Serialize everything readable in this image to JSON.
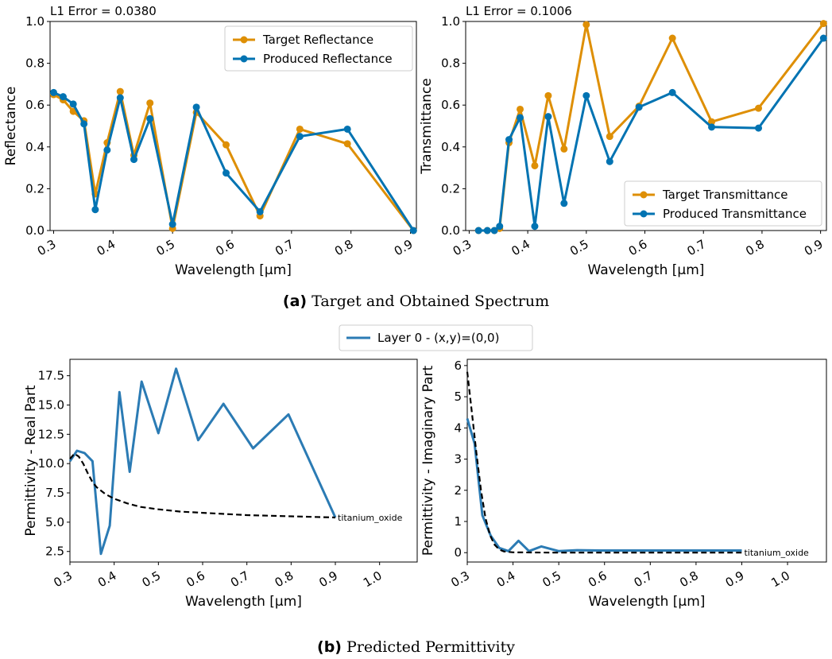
{
  "captions": {
    "a_tag": "(a)",
    "a_text": "Target and Obtained Spectrum",
    "b_tag": "(b)",
    "b_text": "Predicted Permittivity"
  },
  "shared_legend": {
    "label": "Layer 0 - (x,y)=(0,0)",
    "color": "#2b7bb4"
  },
  "colors": {
    "target": "#de8f05",
    "produced": "#0173b2",
    "layer": "#2b7bb4",
    "material": "#000000"
  },
  "chart_data": [
    {
      "id": "reflectance",
      "type": "line",
      "title": "L1 Error = 0.0380",
      "xlabel": "Wavelength [µm]",
      "ylabel": "Reflectance",
      "xlim": [
        0.294,
        0.91
      ],
      "ylim": [
        0,
        1
      ],
      "xticks": [
        0.3,
        0.4,
        0.5,
        0.6,
        0.7,
        0.8,
        0.9
      ],
      "xtick_labels": [
        "0.3",
        "0.4",
        "0.5",
        "0.6",
        "0.7",
        "0.8",
        "0.9"
      ],
      "yticks": [
        0,
        0.2,
        0.4,
        0.6,
        0.8,
        1.0
      ],
      "ytick_labels": [
        "0.0",
        "0.2",
        "0.4",
        "0.6",
        "0.8",
        "1.0"
      ],
      "legend_position": "top-right",
      "x": [
        0.3,
        0.316,
        0.333,
        0.351,
        0.37,
        0.39,
        0.412,
        0.435,
        0.462,
        0.5,
        0.54,
        0.59,
        0.647,
        0.714,
        0.794,
        0.905
      ],
      "series": [
        {
          "name": "Target Reflectance",
          "color": "#de8f05",
          "values": [
            0.65,
            0.625,
            0.57,
            0.525,
            0.175,
            0.42,
            0.665,
            0.36,
            0.61,
            0.01,
            0.565,
            0.41,
            0.07,
            0.485,
            0.415,
            0.0
          ]
        },
        {
          "name": "Produced Reflectance",
          "color": "#0173b2",
          "values": [
            0.66,
            0.64,
            0.605,
            0.51,
            0.1,
            0.385,
            0.635,
            0.34,
            0.535,
            0.03,
            0.59,
            0.275,
            0.09,
            0.45,
            0.485,
            0.0
          ]
        }
      ]
    },
    {
      "id": "transmittance",
      "type": "line",
      "title": "L1 Error = 0.1006",
      "xlabel": "Wavelength [µm]",
      "ylabel": "Transmittance",
      "xlim": [
        0.294,
        0.91
      ],
      "ylim": [
        0,
        1
      ],
      "xticks": [
        0.3,
        0.4,
        0.5,
        0.6,
        0.7,
        0.8,
        0.9
      ],
      "xtick_labels": [
        "0.3",
        "0.4",
        "0.5",
        "0.6",
        "0.7",
        "0.8",
        "0.9"
      ],
      "yticks": [
        0,
        0.2,
        0.4,
        0.6,
        0.8,
        1.0
      ],
      "ytick_labels": [
        "0.0",
        "0.2",
        "0.4",
        "0.6",
        "0.8",
        "1.0"
      ],
      "legend_position": "bottom-right",
      "x": [
        0.316,
        0.331,
        0.343,
        0.352,
        0.368,
        0.387,
        0.412,
        0.435,
        0.462,
        0.5,
        0.54,
        0.59,
        0.647,
        0.714,
        0.794,
        0.905
      ],
      "series": [
        {
          "name": "Target Transmittance",
          "color": "#de8f05",
          "values": [
            0.0,
            0.0,
            0.0,
            0.01,
            0.42,
            0.58,
            0.31,
            0.645,
            0.39,
            0.985,
            0.45,
            0.595,
            0.92,
            0.52,
            0.585,
            0.99
          ]
        },
        {
          "name": "Produced Transmittance",
          "color": "#0173b2",
          "values": [
            0.0,
            0.0,
            0.0,
            0.02,
            0.435,
            0.54,
            0.02,
            0.545,
            0.13,
            0.645,
            0.33,
            0.59,
            0.66,
            0.495,
            0.49,
            0.92
          ]
        }
      ]
    },
    {
      "id": "perm_real",
      "type": "line",
      "xlabel": "Wavelength [µm]",
      "ylabel": "Permittivity - Real Part",
      "xlim": [
        0.3,
        1.085
      ],
      "ylim": [
        1.6,
        18.9
      ],
      "xticks": [
        0.3,
        0.4,
        0.5,
        0.6,
        0.7,
        0.8,
        0.9,
        1.0
      ],
      "xtick_labels": [
        "0.3",
        "0.4",
        "0.5",
        "0.6",
        "0.7",
        "0.8",
        "0.9",
        "1.0"
      ],
      "yticks": [
        2.5,
        5.0,
        7.5,
        10.0,
        12.5,
        15.0,
        17.5
      ],
      "ytick_labels": [
        "2.5",
        "5.0",
        "7.5",
        "10.0",
        "12.5",
        "15.0",
        "17.5"
      ],
      "series": [
        {
          "name": "Layer 0 - (x,y)=(0,0)",
          "color": "#2b7bb4",
          "x": [
            0.3,
            0.316,
            0.333,
            0.351,
            0.37,
            0.39,
            0.412,
            0.435,
            0.462,
            0.5,
            0.54,
            0.59,
            0.647,
            0.714,
            0.794,
            0.9
          ],
          "values": [
            10.2,
            11.1,
            10.9,
            10.2,
            2.3,
            4.7,
            16.1,
            9.3,
            17.0,
            12.6,
            18.1,
            12.0,
            15.1,
            11.3,
            14.2,
            5.4
          ]
        },
        {
          "label": "titanium_oxide",
          "dashed": true,
          "color": "#000000",
          "x": [
            0.3,
            0.31,
            0.32,
            0.33,
            0.34,
            0.35,
            0.36,
            0.38,
            0.4,
            0.43,
            0.46,
            0.5,
            0.55,
            0.6,
            0.7,
            0.8,
            0.9
          ],
          "values": [
            10.4,
            10.85,
            10.6,
            10.0,
            9.2,
            8.5,
            8.0,
            7.4,
            7.0,
            6.6,
            6.3,
            6.1,
            5.9,
            5.8,
            5.6,
            5.5,
            5.4
          ]
        }
      ]
    },
    {
      "id": "perm_imag",
      "type": "line",
      "xlabel": "Wavelength [µm]",
      "ylabel": "Permittivity - Imaginary Part",
      "xlim": [
        0.3,
        1.085
      ],
      "ylim": [
        -0.3,
        6.2
      ],
      "xticks": [
        0.3,
        0.4,
        0.5,
        0.6,
        0.7,
        0.8,
        0.9,
        1.0
      ],
      "xtick_labels": [
        "0.3",
        "0.4",
        "0.5",
        "0.6",
        "0.7",
        "0.8",
        "0.9",
        "1.0"
      ],
      "yticks": [
        0,
        1,
        2,
        3,
        4,
        5,
        6
      ],
      "ytick_labels": [
        "0",
        "1",
        "2",
        "3",
        "4",
        "5",
        "6"
      ],
      "series": [
        {
          "name": "Layer 0 - (x,y)=(0,0)",
          "color": "#2b7bb4",
          "x": [
            0.3,
            0.316,
            0.333,
            0.351,
            0.37,
            0.39,
            0.412,
            0.435,
            0.462,
            0.5,
            0.54,
            0.59,
            0.647,
            0.714,
            0.794,
            0.9
          ],
          "values": [
            4.3,
            3.5,
            1.2,
            0.55,
            0.15,
            0.05,
            0.38,
            0.05,
            0.2,
            0.05,
            0.08,
            0.07,
            0.07,
            0.07,
            0.07,
            0.07
          ]
        },
        {
          "label": "titanium_oxide",
          "dashed": true,
          "color": "#000000",
          "x": [
            0.3,
            0.31,
            0.32,
            0.33,
            0.34,
            0.35,
            0.36,
            0.37,
            0.38,
            0.4,
            0.5,
            0.7,
            0.9
          ],
          "values": [
            5.8,
            4.5,
            3.2,
            2.0,
            1.1,
            0.55,
            0.25,
            0.1,
            0.04,
            0.01,
            0.0,
            0.0,
            0.0
          ]
        }
      ]
    }
  ]
}
